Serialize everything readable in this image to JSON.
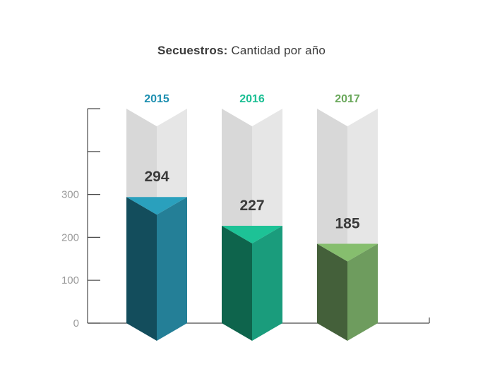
{
  "title": {
    "bold": "Secuestros:",
    "rest": "Cantidad por año"
  },
  "chart_data": {
    "type": "bar",
    "categories": [
      "2015",
      "2016",
      "2017"
    ],
    "values": [
      294,
      227,
      185
    ],
    "y_ticks": [
      0,
      100,
      200,
      300
    ],
    "ylim": [
      0,
      500
    ],
    "grid": false,
    "legend": "none",
    "category_colors": [
      "#1e8fb0",
      "#1cbf94",
      "#6aa85b"
    ],
    "bar_palette": [
      {
        "dark": "#134d5c",
        "light": "#247f97",
        "top": "#2aa0bd"
      },
      {
        "dark": "#0e644c",
        "light": "#1a9c7c",
        "top": "#1dc296"
      },
      {
        "dark": "#44603a",
        "light": "#6e9c5e",
        "top": "#86be6e"
      }
    ]
  }
}
